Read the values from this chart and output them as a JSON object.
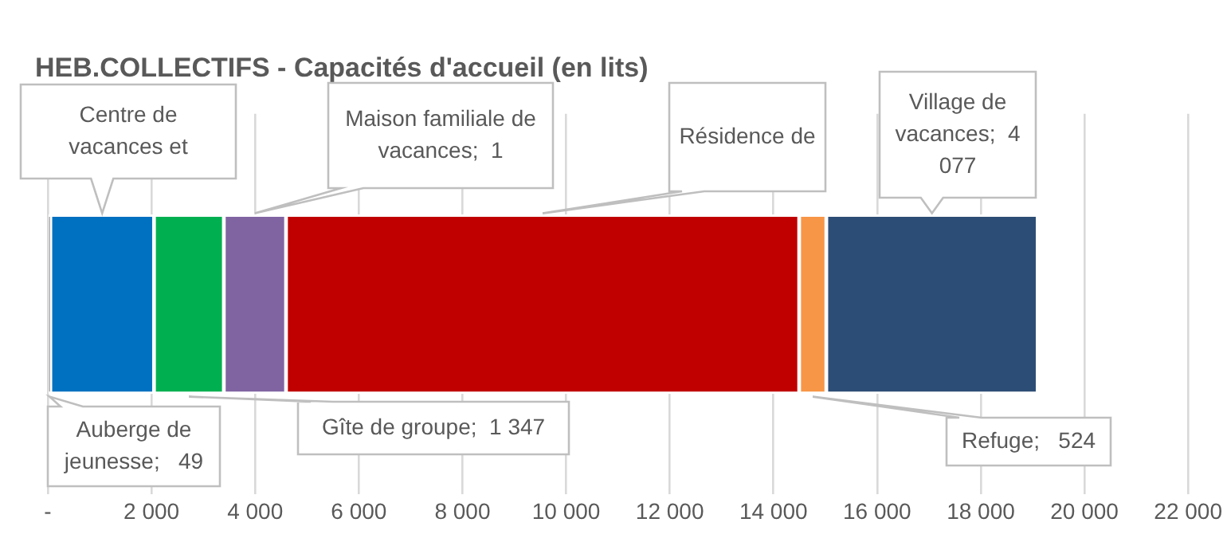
{
  "chart_data": {
    "type": "bar",
    "orientation": "horizontal",
    "stacked": true,
    "title": "HEB.COLLECTIFS - Capacités d'accueil (en lits)",
    "categories": [
      null
    ],
    "series": [
      {
        "color": "#a5a5a5",
        "values": [
          49
        ]
      },
      {
        "color": "#0070c0",
        "values": [
          2000
        ]
      },
      {
        "color": "#00b050",
        "values": [
          1347
        ]
      },
      {
        "color": "#8064a2",
        "values": [
          1200
        ]
      },
      {
        "color": "#c00000",
        "values": [
          9900
        ]
      },
      {
        "color": "#f79646",
        "values": [
          524
        ]
      },
      {
        "color": "#2c4d75",
        "values": [
          4077
        ]
      }
    ],
    "annotations": [
      "Auberge de jeunesse;   49",
      "Centre de vacances et",
      "Gîte de groupe;  1 347",
      "Maison familiale de vacances;  1",
      "Résidence de",
      "Refuge;   524",
      "Village de vacances;  4 077"
    ],
    "xlim": [
      0,
      22000
    ],
    "xticks": [
      {
        "value": 0,
        "label": "-"
      },
      {
        "value": 2000,
        "label": "2 000"
      },
      {
        "value": 4000,
        "label": "4 000"
      },
      {
        "value": 6000,
        "label": "6 000"
      },
      {
        "value": 8000,
        "label": "8 000"
      },
      {
        "value": 10000,
        "label": "10 000"
      },
      {
        "value": 12000,
        "label": "12 000"
      },
      {
        "value": 14000,
        "label": "14 000"
      },
      {
        "value": 16000,
        "label": "16 000"
      },
      {
        "value": 18000,
        "label": "18 000"
      },
      {
        "value": 20000,
        "label": "20 000"
      },
      {
        "value": 22000,
        "label": "22 000"
      }
    ],
    "grid": "x",
    "legend": false
  }
}
